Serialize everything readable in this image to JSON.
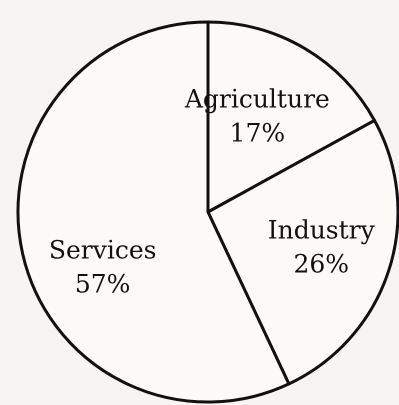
{
  "chart_data": {
    "type": "pie",
    "title": "",
    "slices": [
      {
        "label": "Agriculture",
        "value": 17,
        "value_label": "17%"
      },
      {
        "label": "Industry",
        "value": 26,
        "value_label": "26%"
      },
      {
        "label": "Services",
        "value": 57,
        "value_label": "57%"
      }
    ],
    "start_angle": "12 o'clock",
    "direction": "clockwise",
    "legend": "none",
    "fill_color": "#fbfaf7",
    "stroke_color": "#111111"
  }
}
